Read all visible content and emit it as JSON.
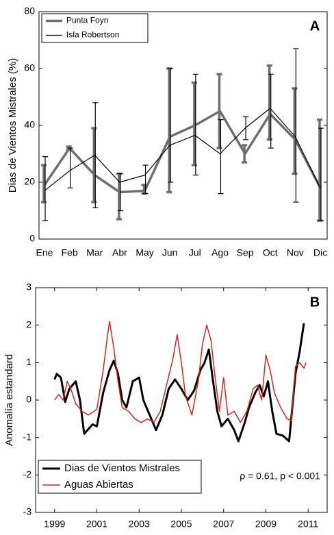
{
  "chart_data": [
    {
      "type": "line",
      "panel_label": "A",
      "y_label": "Dias de Vientos Mistrales (%)",
      "categories": [
        "Ene",
        "Feb",
        "Mar",
        "Abr",
        "May",
        "Jun",
        "Jul",
        "Ago",
        "Sep",
        "Oct",
        "Nov",
        "Dic"
      ],
      "ylim": [
        0,
        80
      ],
      "yticks": [
        0,
        20,
        40,
        60,
        80
      ],
      "legend": "upper left",
      "series": [
        {
          "name": "Punta Foyn",
          "color": "#6e6e6e",
          "values": [
            19,
            32,
            22.5,
            16.5,
            17,
            36,
            40,
            45,
            30,
            44,
            35,
            18
          ],
          "lower": [
            13,
            31.5,
            13,
            7,
            16,
            16.5,
            26,
            32,
            27,
            35,
            23,
            6.5
          ],
          "upper": [
            26,
            32.5,
            39,
            23,
            19,
            60,
            55,
            58,
            33,
            61,
            53,
            42
          ]
        },
        {
          "name": "Isla Robertson",
          "color": "#000000",
          "values": [
            17,
            24,
            29.5,
            20,
            22.5,
            33,
            36.5,
            30,
            39,
            46,
            36,
            18
          ],
          "lower": [
            6.5,
            18,
            11,
            10,
            16,
            20,
            22.5,
            16,
            35,
            32,
            13,
            6.5
          ],
          "upper": [
            29,
            32,
            48,
            23,
            26,
            60,
            58,
            42,
            43,
            58,
            67,
            39
          ]
        }
      ]
    },
    {
      "type": "line",
      "panel_label": "B",
      "y_label": "Anomalía estandard",
      "annotation": "ρ = 0.61, p < 0.001",
      "xlim": [
        1998.1,
        2011.9
      ],
      "xticks": [
        1999,
        2001,
        2003,
        2005,
        2007,
        2009,
        2011
      ],
      "ylim": [
        -3,
        3
      ],
      "yticks": [
        -3,
        -2,
        -1,
        0,
        1,
        2,
        3
      ],
      "legend": "lower left",
      "series": [
        {
          "name": "Dias de Vientos Mistrales",
          "color": "#000000",
          "x": [
            1999.0,
            1999.1,
            1999.3,
            1999.5,
            1999.7,
            2000.0,
            2000.2,
            2000.4,
            2000.8,
            2001.0,
            2001.3,
            2001.6,
            2001.8,
            2002.0,
            2002.2,
            2002.4,
            2002.7,
            2003.0,
            2003.2,
            2003.5,
            2003.8,
            2004.1,
            2004.4,
            2004.7,
            2005.0,
            2005.3,
            2005.6,
            2005.9,
            2006.1,
            2006.3,
            2006.5,
            2006.7,
            2006.9,
            2007.2,
            2007.5,
            2007.7,
            2008.0,
            2008.2,
            2008.5,
            2008.7,
            2008.9,
            2009.1,
            2009.3,
            2009.5,
            2009.8,
            2010.1,
            2010.4,
            2010.6,
            2010.8
          ],
          "values": [
            0.55,
            0.7,
            0.6,
            -0.05,
            0.3,
            0.5,
            0.0,
            -0.9,
            -0.65,
            -0.7,
            0.2,
            0.8,
            1.05,
            0.7,
            0.0,
            -0.2,
            0.5,
            0.6,
            0.0,
            -0.4,
            -0.8,
            -0.4,
            0.3,
            0.55,
            0.3,
            0.0,
            0.25,
            0.8,
            1.0,
            1.35,
            0.5,
            -0.3,
            -0.7,
            -0.5,
            -0.8,
            -1.1,
            -0.6,
            -0.2,
            0.2,
            0.4,
            0.1,
            0.5,
            -0.3,
            -0.9,
            -0.95,
            -1.1,
            0.7,
            1.3,
            2.05
          ]
        },
        {
          "name": "Aguas  Abiertas",
          "color": "#e02020",
          "x": [
            1999.0,
            1999.2,
            1999.4,
            1999.6,
            1999.8,
            2000.0,
            2000.3,
            2000.6,
            2001.0,
            2001.3,
            2001.5,
            2001.6,
            2001.8,
            2002.0,
            2002.2,
            2002.5,
            2002.8,
            2003.1,
            2003.4,
            2003.7,
            2004.0,
            2004.3,
            2004.6,
            2004.8,
            2005.0,
            2005.2,
            2005.5,
            2005.8,
            2006.0,
            2006.2,
            2006.4,
            2006.6,
            2006.8,
            2007.0,
            2007.2,
            2007.5,
            2007.8,
            2008.1,
            2008.4,
            2008.6,
            2008.8,
            2009.0,
            2009.2,
            2009.4,
            2009.7,
            2010.0,
            2010.2,
            2010.4,
            2010.6,
            2010.8,
            2010.9
          ],
          "values": [
            0.0,
            0.15,
            0.0,
            0.5,
            0.25,
            -0.1,
            -0.3,
            -0.4,
            -0.25,
            0.8,
            1.7,
            2.1,
            1.4,
            0.5,
            -0.2,
            -0.3,
            -0.5,
            -0.6,
            -0.5,
            -0.6,
            -0.3,
            0.4,
            1.1,
            1.75,
            1.0,
            0.1,
            -0.4,
            0.5,
            1.5,
            2.0,
            1.6,
            0.6,
            -0.3,
            0.6,
            -0.4,
            -0.3,
            -0.6,
            -0.3,
            0.3,
            0.4,
            0.0,
            1.2,
            0.8,
            0.2,
            -0.2,
            -0.5,
            -0.55,
            0.9,
            1.0,
            0.85,
            1.0
          ]
        }
      ]
    }
  ]
}
